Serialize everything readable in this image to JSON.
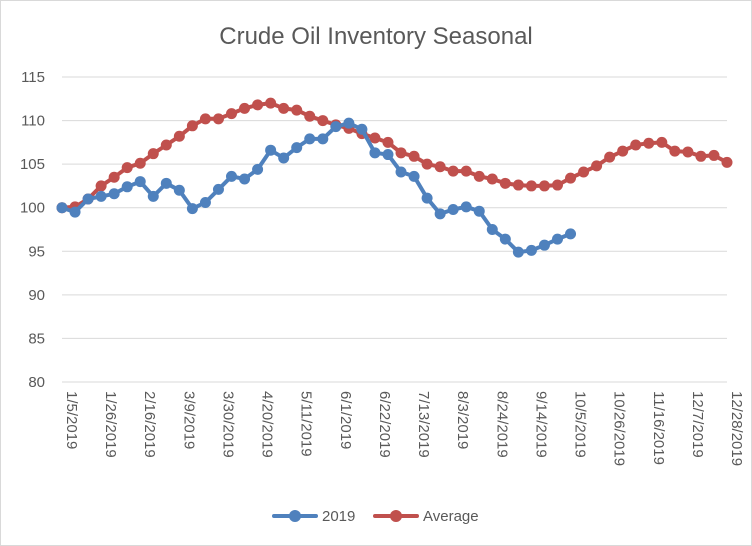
{
  "chart_data": {
    "type": "line",
    "title": "Crude Oil Inventory Seasonal",
    "xlabel": "",
    "ylabel": "",
    "ylim": [
      80,
      115
    ],
    "y_ticks": [
      80,
      85,
      90,
      95,
      100,
      105,
      110,
      115
    ],
    "x_tick_labels": [
      "1/5/2019",
      "1/26/2019",
      "2/16/2019",
      "3/9/2019",
      "3/30/2019",
      "4/20/2019",
      "5/11/2019",
      "6/1/2019",
      "6/22/2019",
      "7/13/2019",
      "8/3/2019",
      "8/24/2019",
      "9/14/2019",
      "10/5/2019",
      "10/26/2019",
      "11/16/2019",
      "12/7/2019",
      "12/28/2019"
    ],
    "grid": "horizontal",
    "legend_position": "bottom",
    "series": [
      {
        "name": "2019",
        "color": "#4f81bd",
        "values": [
          100.0,
          99.5,
          101.0,
          101.3,
          101.6,
          102.4,
          103.0,
          101.3,
          102.8,
          102.0,
          99.9,
          100.6,
          102.1,
          103.6,
          103.3,
          104.4,
          106.6,
          105.7,
          106.9,
          107.9,
          107.9,
          109.3,
          109.7,
          109.0,
          106.3,
          106.1,
          104.1,
          103.6,
          101.1,
          99.3,
          99.8,
          100.1,
          99.6,
          97.5,
          96.4,
          94.9,
          95.1,
          95.7,
          96.4,
          97.0
        ]
      },
      {
        "name": "Average",
        "color": "#c0504d",
        "values": [
          100.0,
          100.1,
          101.0,
          102.5,
          103.5,
          104.6,
          105.1,
          106.2,
          107.2,
          108.2,
          109.4,
          110.2,
          110.2,
          110.8,
          111.4,
          111.8,
          112.0,
          111.4,
          111.2,
          110.5,
          110.0,
          109.5,
          109.1,
          108.5,
          108.0,
          107.5,
          106.3,
          105.9,
          105.0,
          104.7,
          104.2,
          104.2,
          103.6,
          103.3,
          102.8,
          102.6,
          102.5,
          102.5,
          102.6,
          103.4,
          104.1,
          104.8,
          105.8,
          106.5,
          107.2,
          107.4,
          107.5,
          106.5,
          106.4,
          105.9,
          106.0,
          105.2
        ]
      }
    ]
  }
}
